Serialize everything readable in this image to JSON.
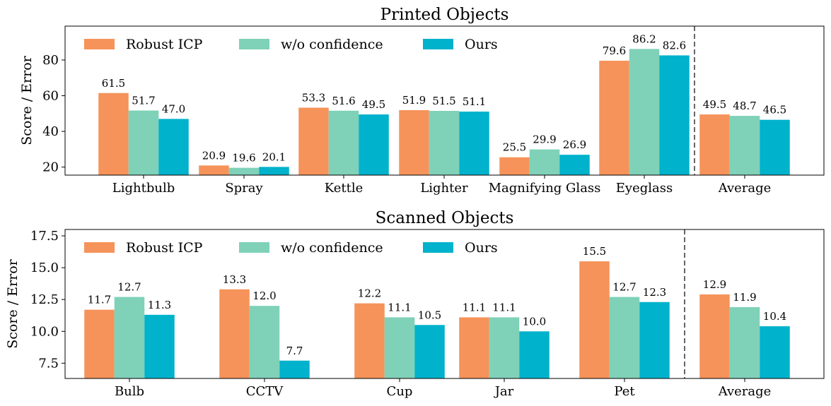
{
  "chart_data": [
    {
      "type": "bar",
      "title": "Printed Objects",
      "ylabel": "Score / Error",
      "xlabel": "",
      "ylim": [
        15.5,
        99
      ],
      "yticks": [
        20,
        40,
        60,
        80
      ],
      "grid": false,
      "legend_position": "top-left",
      "divider_after_category": "Eyeglass",
      "categories": [
        "Lightbulb",
        "Spray",
        "Kettle",
        "Lighter",
        "Magnifying Glass",
        "Eyeglass",
        "Average"
      ],
      "series": [
        {
          "name": "Robust ICP",
          "color": "#F5935A",
          "values": [
            61.5,
            20.9,
            53.3,
            51.9,
            25.5,
            79.6,
            49.5
          ]
        },
        {
          "name": "w/o confidence",
          "color": "#7FD1B8",
          "values": [
            51.7,
            19.6,
            51.6,
            51.5,
            29.9,
            86.2,
            48.7
          ]
        },
        {
          "name": "Ours",
          "color": "#00B2CB",
          "values": [
            47.0,
            20.1,
            49.5,
            51.1,
            26.9,
            82.6,
            46.5
          ]
        }
      ]
    },
    {
      "type": "bar",
      "title": "Scanned Objects",
      "ylabel": "Score / Error",
      "xlabel": "",
      "ylim": [
        6.3,
        18.0
      ],
      "yticks": [
        7.5,
        10.0,
        12.5,
        15.0,
        17.5
      ],
      "grid": false,
      "legend_position": "top-left",
      "divider_after_category": "Pet",
      "categories": [
        "Bulb",
        "CCTV",
        "Cup",
        "Jar",
        "Pet",
        "Average"
      ],
      "series": [
        {
          "name": "Robust ICP",
          "color": "#F5935A",
          "values": [
            11.7,
            13.3,
            12.2,
            11.1,
            15.5,
            12.9
          ]
        },
        {
          "name": "w/o confidence",
          "color": "#7FD1B8",
          "values": [
            12.7,
            12.0,
            11.1,
            11.1,
            12.7,
            11.9
          ]
        },
        {
          "name": "Ours",
          "color": "#00B2CB",
          "values": [
            11.3,
            7.7,
            10.5,
            10.0,
            12.3,
            10.4
          ]
        }
      ]
    }
  ]
}
